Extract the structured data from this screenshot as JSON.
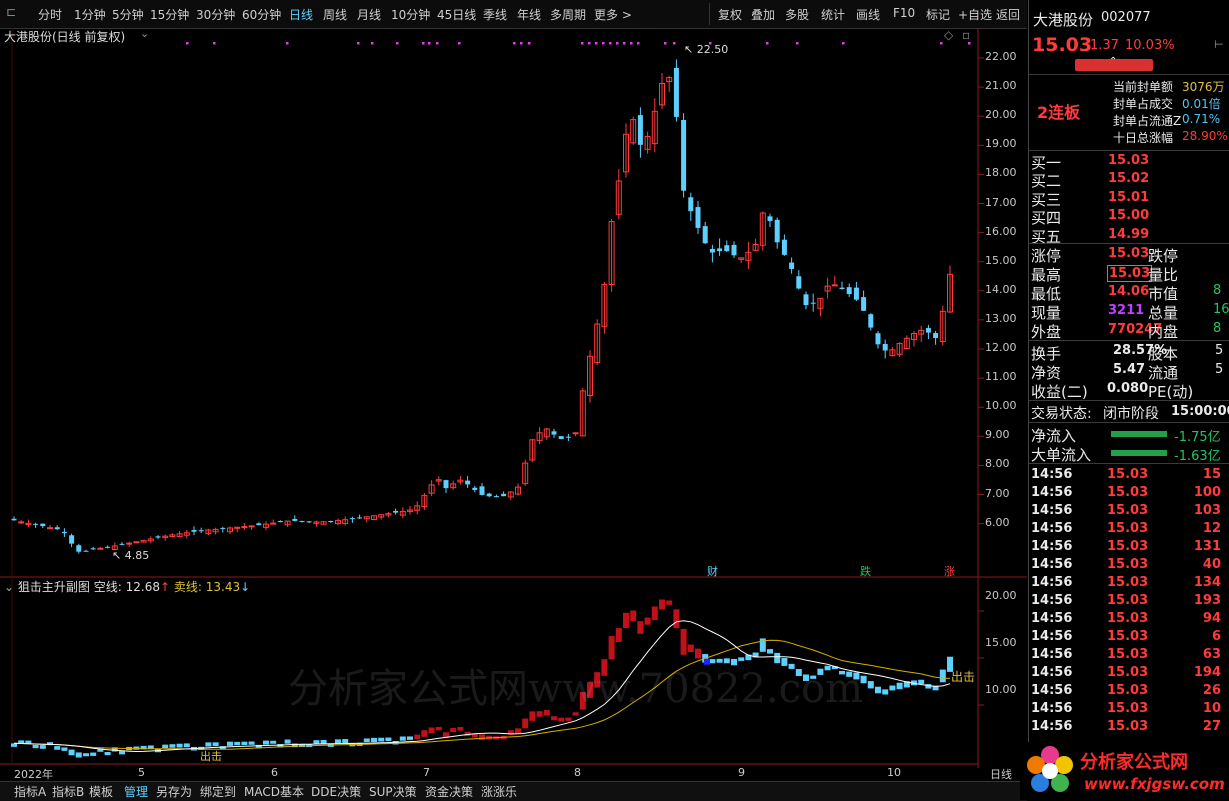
{
  "toolbar": {
    "periods": [
      "分时",
      "1分钟",
      "5分钟",
      "15分钟",
      "30分钟",
      "60分钟",
      "日线",
      "周线",
      "月线",
      "10分钟",
      "45日线",
      "季线",
      "年线",
      "多周期",
      "更多 >"
    ],
    "active_period": "日线",
    "tools": [
      "复权",
      "叠加",
      "多股",
      "统计",
      "画线",
      "F10",
      "标记",
      "+自选",
      "返回"
    ]
  },
  "main_chart": {
    "title": "大港股份(日线 前复权)",
    "high_label": "22.50",
    "low_label": "4.85",
    "price_axis": [
      "22.00",
      "21.00",
      "20.00",
      "19.00",
      "18.00",
      "17.00",
      "16.00",
      "15.00",
      "14.00",
      "13.00",
      "12.00",
      "11.00",
      "10.00",
      "9.00",
      "8.00",
      "7.00",
      "6.00"
    ],
    "markers": [
      {
        "text": "财",
        "color": "#5ed0ff"
      },
      {
        "text": "跌",
        "color": "#22c55e"
      },
      {
        "text": "涨",
        "color": "#ff4040"
      }
    ]
  },
  "sub_chart": {
    "title": "狙击主升副图",
    "empty_line_label": "空线:",
    "empty_line_value": "12.68",
    "empty_line_arrow": "↑",
    "sell_line_label": "卖线:",
    "sell_line_value": "13.43",
    "sell_line_arrow": "↓",
    "axis": [
      "20.00",
      "15.00",
      "10.00"
    ],
    "signal_text": "出击",
    "watermark": "分析家公式网www.70822.com"
  },
  "x_axis": [
    "2022年",
    "5",
    "6",
    "7",
    "8",
    "9",
    "10"
  ],
  "x_axis_period": "日线",
  "bottom_tabs": [
    "指标A",
    "指标B",
    "模板",
    "管理",
    "另存为",
    "绑定到",
    "MACD基本",
    "DDE决策",
    "SUP决策",
    "资金决策",
    "涨涨乐"
  ],
  "bottom_active": "管理",
  "quote": {
    "name": "大港股份",
    "code": "002077",
    "price": "15.03",
    "change": "1.37",
    "change_pct": "10.03%",
    "streak": "2连板",
    "seal_lines": [
      {
        "label": "当前封单额",
        "value": "3076万",
        "color": "#e0c040"
      },
      {
        "label": "封单占成交",
        "value": "0.01倍",
        "color": "#4fc3f7"
      },
      {
        "label": "封单占流通Z",
        "value": "0.71%",
        "color": "#4fc3f7"
      },
      {
        "label": "十日总涨幅",
        "value": "28.90%",
        "color": "#ff3b3b"
      }
    ],
    "bids": [
      {
        "label": "买一",
        "price": "15.03"
      },
      {
        "label": "买二",
        "price": "15.02"
      },
      {
        "label": "买三",
        "price": "15.01"
      },
      {
        "label": "买四",
        "price": "15.00"
      },
      {
        "label": "买五",
        "price": "14.99"
      }
    ],
    "stats": [
      {
        "l1": "涨停",
        "v1": "15.03",
        "c1": "#ff3b3b",
        "l2": "跌停",
        "v2": ""
      },
      {
        "l1": "最高",
        "v1": "15.03",
        "c1": "#ff3b3b",
        "l2": "量比",
        "v2": ""
      },
      {
        "l1": "最低",
        "v1": "14.06",
        "c1": "#ff3b3b",
        "l2": "市值",
        "v2": "8"
      },
      {
        "l1": "现量",
        "v1": "3211",
        "c1": "#c040ff",
        "l2": "总量",
        "v2": "16"
      },
      {
        "l1": "外盘",
        "v1": "770247",
        "c1": "#ff3b3b",
        "l2": "内盘",
        "v2": "8"
      }
    ],
    "stats2": [
      {
        "l1": "换手",
        "v1": "28.57%",
        "l2": "股本",
        "v2": "5"
      },
      {
        "l1": "净资",
        "v1": "5.47",
        "l2": "流通",
        "v2": "5"
      },
      {
        "l1": "收益(二)",
        "v1": "0.080",
        "l2": "PE(动)",
        "v2": ""
      }
    ],
    "trade_status_label": "交易状态:",
    "trade_status": "闭市阶段",
    "trade_time": "15:00:00",
    "flows": [
      {
        "label": "净流入",
        "value": "-1.75亿"
      },
      {
        "label": "大单流入",
        "value": "-1.63亿"
      }
    ],
    "ticks": [
      {
        "t": "14:56",
        "p": "15.03",
        "v": "15"
      },
      {
        "t": "14:56",
        "p": "15.03",
        "v": "100"
      },
      {
        "t": "14:56",
        "p": "15.03",
        "v": "103"
      },
      {
        "t": "14:56",
        "p": "15.03",
        "v": "12"
      },
      {
        "t": "14:56",
        "p": "15.03",
        "v": "131"
      },
      {
        "t": "14:56",
        "p": "15.03",
        "v": "40"
      },
      {
        "t": "14:56",
        "p": "15.03",
        "v": "134"
      },
      {
        "t": "14:56",
        "p": "15.03",
        "v": "193"
      },
      {
        "t": "14:56",
        "p": "15.03",
        "v": "94"
      },
      {
        "t": "14:56",
        "p": "15.03",
        "v": "6"
      },
      {
        "t": "14:56",
        "p": "15.03",
        "v": "63"
      },
      {
        "t": "14:56",
        "p": "15.03",
        "v": "194"
      },
      {
        "t": "14:56",
        "p": "15.03",
        "v": "26"
      },
      {
        "t": "14:56",
        "p": "15.03",
        "v": "10"
      },
      {
        "t": "14:56",
        "p": "15.03",
        "v": "27"
      }
    ]
  },
  "logo": {
    "title": "分析家公式网",
    "url": "www.fxjgsw.com"
  },
  "colors": {
    "up": "#ff3b3b",
    "down": "#5ed0ff",
    "ma_white": "#ffffff",
    "ma_yellow": "#d4b000"
  }
}
